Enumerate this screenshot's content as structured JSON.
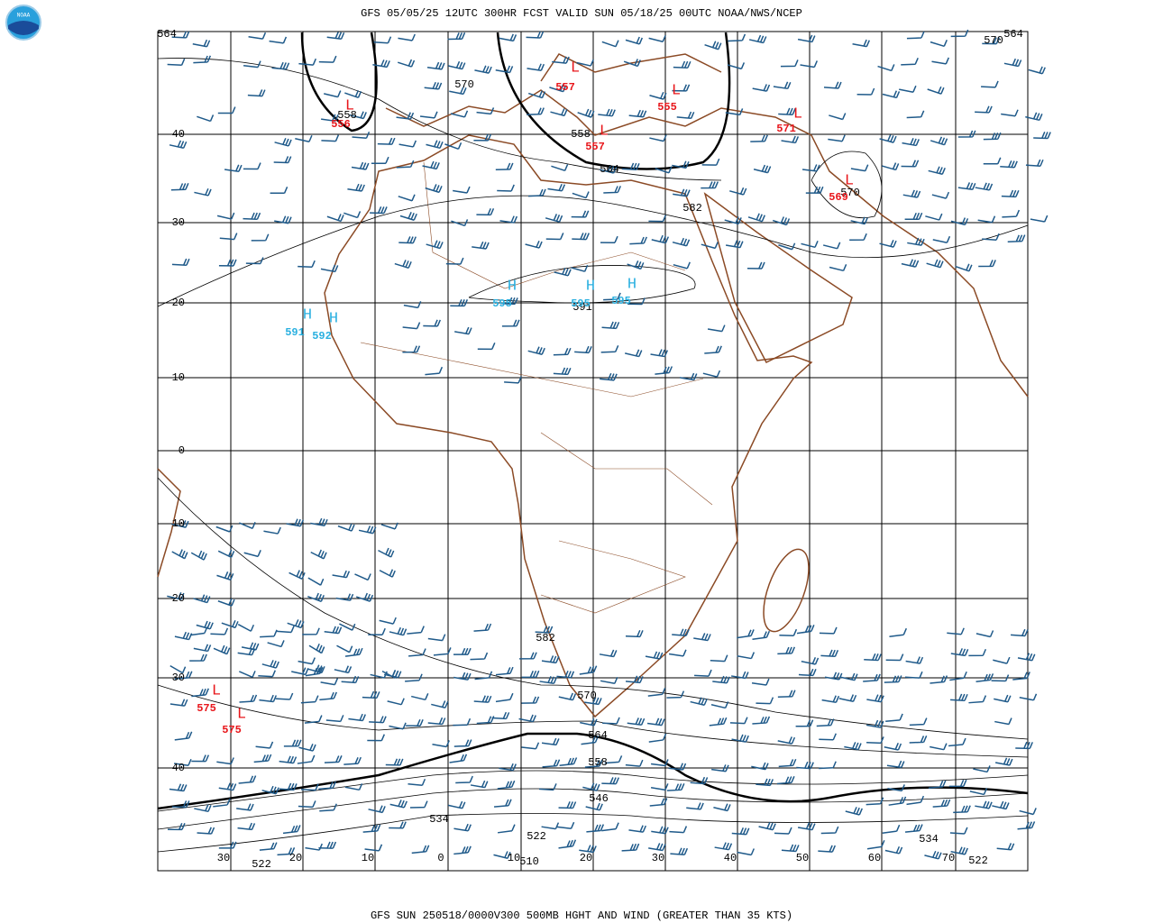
{
  "header": {
    "title": "GFS 05/05/25 12UTC 300HR FCST VALID SUN 05/18/25 00UTC NOAA/NWS/NCEP",
    "logo": "NOAA"
  },
  "footer": "GFS SUN 250518/0000V300 500MB HGHT AND WIND (GREATER THAN 35 KTS)",
  "lat_labels": [
    "40",
    "30",
    "20",
    "10",
    "0",
    "-10",
    "-20",
    "-30",
    "-40"
  ],
  "lon_labels": [
    "30",
    "20",
    "10",
    "0",
    "10",
    "20",
    "30",
    "40",
    "50",
    "60",
    "70"
  ],
  "contour_labels": [
    564,
    564,
    570,
    570,
    558,
    558,
    564,
    582,
    570,
    591,
    582,
    570,
    564,
    558,
    546,
    534,
    522,
    510,
    522,
    534,
    522
  ],
  "highs": [
    {
      "symbol": "H",
      "value": 595
    },
    {
      "symbol": "H",
      "value": 595
    },
    {
      "symbol": "H",
      "value": 595
    },
    {
      "symbol": "H",
      "value": 591
    },
    {
      "symbol": "H",
      "value": 592
    }
  ],
  "lows": [
    {
      "symbol": "L",
      "value": 557
    },
    {
      "symbol": "L",
      "value": 555
    },
    {
      "symbol": "L",
      "value": 556
    },
    {
      "symbol": "L",
      "value": 557
    },
    {
      "symbol": "L",
      "value": 571
    },
    {
      "symbol": "L",
      "value": 569
    },
    {
      "symbol": "L",
      "value": 575
    },
    {
      "symbol": "L",
      "value": 575
    }
  ]
}
